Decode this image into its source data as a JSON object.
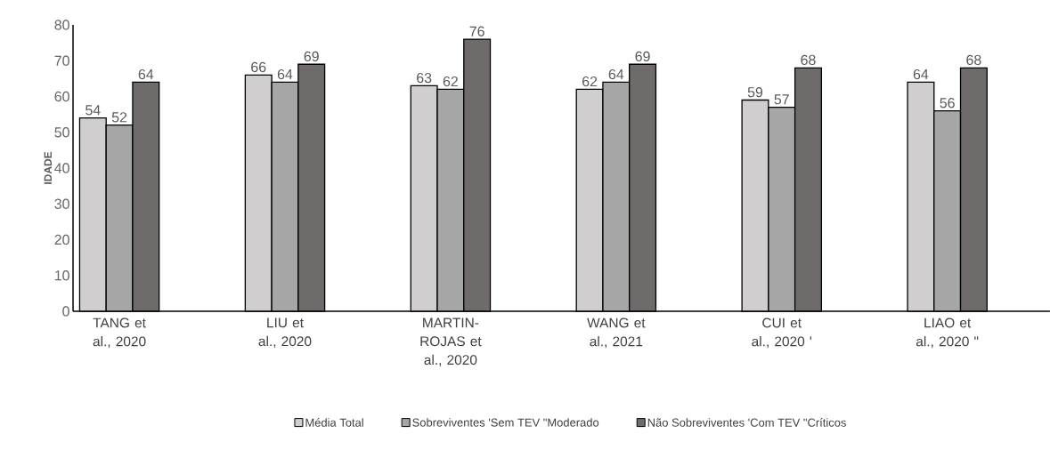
{
  "chart_data": {
    "type": "bar",
    "ylabel": "IDADE",
    "categories": [
      "TANG et al., 2020",
      "LIU et al., 2020",
      "MARTIN-ROJAS et al., 2020",
      "WANG et al., 2021",
      "CUI et al., 2020 '",
      "LIAO et al., 2020 \""
    ],
    "series": [
      {
        "name": "Média Total",
        "color": "#d0cece",
        "values": [
          54,
          66,
          63,
          62,
          59,
          64
        ]
      },
      {
        "name": "Sobreviventes  'Sem TEV  \"Moderado",
        "color": "#a6a6a6",
        "values": [
          52,
          64,
          62,
          64,
          57,
          56
        ]
      },
      {
        "name": "Não Sobreviventes  'Com TEV  \"Críticos",
        "color": "#6f6b6b",
        "values": [
          64,
          69,
          76,
          69,
          68,
          68
        ]
      }
    ],
    "ylim": [
      0,
      80
    ],
    "yticks": [
      0,
      10,
      20,
      30,
      40,
      50,
      60,
      70,
      80
    ],
    "data_labels": true,
    "legend": "bottom",
    "grid": false
  }
}
